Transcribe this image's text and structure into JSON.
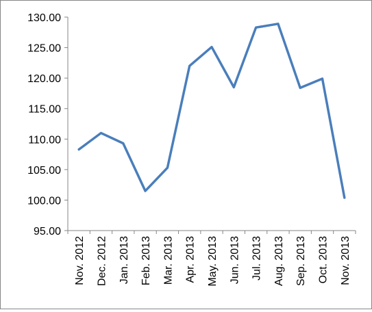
{
  "chart_data": {
    "type": "line",
    "title": "",
    "xlabel": "",
    "ylabel": "",
    "categories": [
      "Nov. 2012",
      "Dec. 2012",
      "Jan. 2013",
      "Feb. 2013",
      "Mar. 2013",
      "Apr. 2013",
      "May. 2013",
      "Jun. 2013",
      "Jul. 2013",
      "Aug. 2013",
      "Sep. 2013",
      "Oct. 2013",
      "Nov. 2013"
    ],
    "series": [
      {
        "values": [
          108.3,
          111.0,
          109.3,
          101.5,
          105.3,
          122.0,
          125.1,
          118.5,
          128.3,
          128.9,
          118.4,
          119.9,
          100.4
        ]
      }
    ],
    "ylim": [
      95,
      130
    ],
    "ytick_step": 5,
    "ytick_labels": [
      "95.00",
      "100.00",
      "105.00",
      "110.00",
      "115.00",
      "120.00",
      "125.00",
      "130.00"
    ],
    "grid": false,
    "legend": "none",
    "colors": {
      "line": "#4A7EBB",
      "axis": "#868686",
      "frame": "#868686"
    }
  }
}
